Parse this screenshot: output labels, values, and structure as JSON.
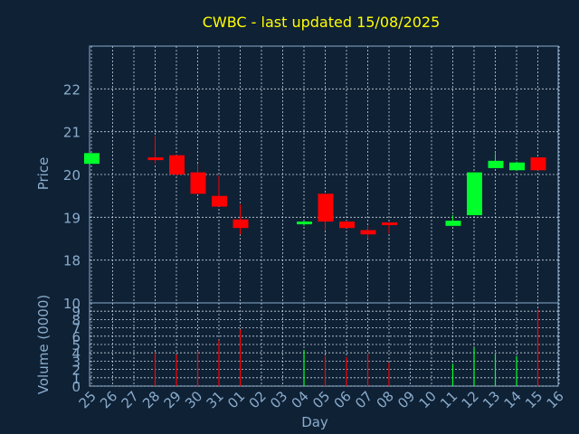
{
  "title": "CWBC - last updated 15/08/2025",
  "colors": {
    "background": "#0f2135",
    "axis": "#8aaccc",
    "grid": "#c7d3df",
    "title": "#ffff00",
    "up": "#00ff2a",
    "down": "#ff0000"
  },
  "chart_data": [
    {
      "type": "candlestick",
      "ylabel": "Price",
      "ylim": [
        17,
        23
      ],
      "yticks": [
        18,
        19,
        20,
        21,
        22
      ],
      "grid": true,
      "x_ticks": [
        "25",
        "26",
        "27",
        "28",
        "29",
        "30",
        "31",
        "01",
        "02",
        "03",
        "04",
        "05",
        "06",
        "07",
        "08",
        "09",
        "10",
        "11",
        "12",
        "13",
        "14",
        "15",
        "16"
      ],
      "candles": [
        {
          "day": "25",
          "open": 20.25,
          "high": 20.5,
          "low": 20.25,
          "close": 20.5
        },
        {
          "day": "28",
          "open": 20.4,
          "high": 20.9,
          "low": 20.25,
          "close": 20.35
        },
        {
          "day": "29",
          "open": 20.45,
          "high": 20.45,
          "low": 19.98,
          "close": 20.0
        },
        {
          "day": "30",
          "open": 20.05,
          "high": 20.25,
          "low": 19.55,
          "close": 19.55
        },
        {
          "day": "31",
          "open": 19.5,
          "high": 19.98,
          "low": 19.25,
          "close": 19.25
        },
        {
          "day": "01",
          "open": 18.95,
          "high": 19.3,
          "low": 18.6,
          "close": 18.75
        },
        {
          "day": "04",
          "open": 18.85,
          "high": 18.92,
          "low": 18.8,
          "close": 18.9
        },
        {
          "day": "05",
          "open": 19.55,
          "high": 19.55,
          "low": 18.7,
          "close": 18.9
        },
        {
          "day": "06",
          "open": 18.9,
          "high": 18.92,
          "low": 18.75,
          "close": 18.75
        },
        {
          "day": "07",
          "open": 18.7,
          "high": 18.8,
          "low": 18.5,
          "close": 18.6
        },
        {
          "day": "08",
          "open": 18.88,
          "high": 18.88,
          "low": 18.62,
          "close": 18.82
        },
        {
          "day": "11",
          "open": 18.8,
          "high": 19.05,
          "low": 18.8,
          "close": 18.92
        },
        {
          "day": "12",
          "open": 19.05,
          "high": 20.05,
          "low": 19.05,
          "close": 20.05
        },
        {
          "day": "13",
          "open": 20.15,
          "high": 20.5,
          "low": 20.15,
          "close": 20.32
        },
        {
          "day": "14",
          "open": 20.1,
          "high": 20.3,
          "low": 20.1,
          "close": 20.28
        },
        {
          "day": "15",
          "open": 20.4,
          "high": 20.4,
          "low": 20.1,
          "close": 20.1
        }
      ]
    },
    {
      "type": "bar",
      "ylabel": "Volume (0000)",
      "ylim": [
        0,
        10
      ],
      "yticks": [
        0,
        1,
        2,
        3,
        4,
        5,
        6,
        7,
        8,
        9
      ],
      "top_label": "10",
      "xlabel": "Day",
      "grid": true,
      "bars": [
        {
          "day": "28",
          "value": 4.0,
          "dir": "down"
        },
        {
          "day": "29",
          "value": 3.8,
          "dir": "down"
        },
        {
          "day": "30",
          "value": 4.2,
          "dir": "down"
        },
        {
          "day": "31",
          "value": 5.5,
          "dir": "down"
        },
        {
          "day": "01",
          "value": 6.8,
          "dir": "down"
        },
        {
          "day": "04",
          "value": 4.3,
          "dir": "up"
        },
        {
          "day": "05",
          "value": 3.6,
          "dir": "down"
        },
        {
          "day": "06",
          "value": 3.5,
          "dir": "down"
        },
        {
          "day": "07",
          "value": 3.9,
          "dir": "down"
        },
        {
          "day": "08",
          "value": 2.8,
          "dir": "down"
        },
        {
          "day": "11",
          "value": 2.7,
          "dir": "up"
        },
        {
          "day": "12",
          "value": 4.6,
          "dir": "up"
        },
        {
          "day": "13",
          "value": 3.8,
          "dir": "up"
        },
        {
          "day": "14",
          "value": 3.6,
          "dir": "up"
        },
        {
          "day": "15",
          "value": 9.2,
          "dir": "down"
        }
      ]
    }
  ]
}
